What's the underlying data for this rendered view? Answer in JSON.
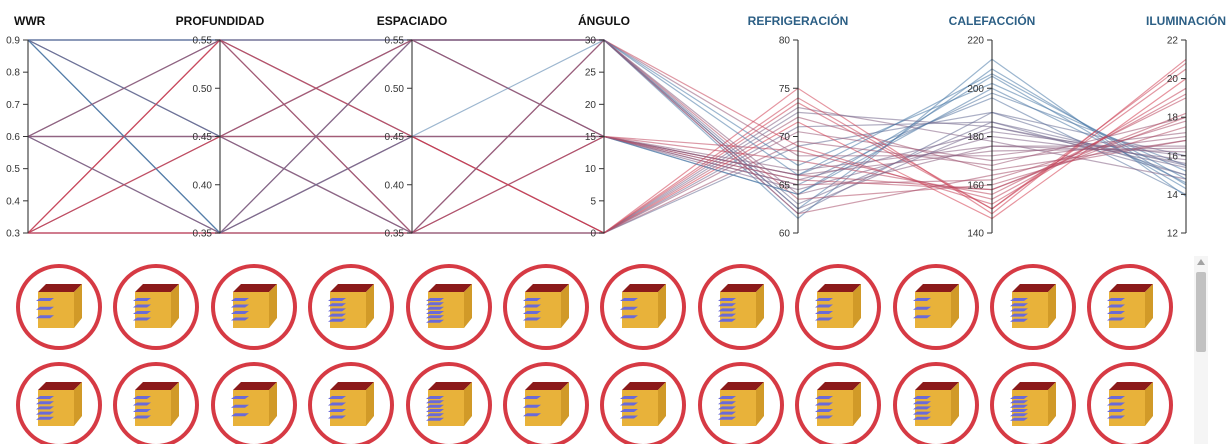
{
  "colors": {
    "high": "#4a7aa8",
    "low": "#d93a4c",
    "blue_title": "#2c5f85",
    "ring": "#d63a44",
    "box_top": "#8b1a1a",
    "box_face": "#e8b23a",
    "box_side": "#d19a28",
    "louver": "#6a6ad8"
  },
  "chart_data": {
    "type": "parallel-coordinates",
    "axes": [
      {
        "label": "WWR",
        "min": 0.3,
        "max": 0.9,
        "ticks": [
          "0.9",
          "0.8",
          "0.7",
          "0.6",
          "0.5",
          "0.4",
          "0.3"
        ],
        "tick_values": [
          0.9,
          0.8,
          0.7,
          0.6,
          0.5,
          0.4,
          0.3
        ],
        "title_color": "#111111",
        "tick_side": "left"
      },
      {
        "label": "PROFUNDIDAD",
        "min": 0.35,
        "max": 0.55,
        "ticks": [
          "0.55",
          "0.50",
          "0.45",
          "0.40",
          "0.35"
        ],
        "tick_values": [
          0.55,
          0.5,
          0.45,
          0.4,
          0.35
        ],
        "title_color": "#111111",
        "tick_side": "left"
      },
      {
        "label": "ESPACIADO",
        "min": 0.35,
        "max": 0.55,
        "ticks": [
          "0.55",
          "0.50",
          "0.45",
          "0.40",
          "0.35"
        ],
        "tick_values": [
          0.55,
          0.5,
          0.45,
          0.4,
          0.35
        ],
        "title_color": "#111111",
        "tick_side": "left"
      },
      {
        "label": "ÁNGULO",
        "min": 0,
        "max": 30,
        "ticks": [
          "30",
          "25",
          "20",
          "15",
          "10",
          "5",
          "0"
        ],
        "tick_values": [
          30,
          25,
          20,
          15,
          10,
          5,
          0
        ],
        "title_color": "#111111",
        "tick_side": "left"
      },
      {
        "label": "REFRIGERACIÓN",
        "min": 60,
        "max": 80,
        "ticks": [
          "80",
          "75",
          "70",
          "65",
          "60"
        ],
        "tick_values": [
          80,
          75,
          70,
          65,
          60
        ],
        "title_color": "#2c5f85",
        "tick_side": "left"
      },
      {
        "label": "CALEFACCIÓN",
        "min": 140,
        "max": 220,
        "ticks": [
          "220",
          "200",
          "180",
          "160",
          "140"
        ],
        "tick_values": [
          220,
          200,
          180,
          160,
          140
        ],
        "title_color": "#2c5f85",
        "tick_side": "left"
      },
      {
        "label": "ILUMINACIÓN",
        "min": 12,
        "max": 22,
        "ticks": [
          "22",
          "20",
          "18",
          "16",
          "14",
          "12"
        ],
        "tick_values": [
          22,
          20,
          18,
          16,
          14,
          12
        ],
        "title_color": "#2c5f85",
        "tick_side": "left"
      }
    ],
    "lines": [
      [
        0.9,
        0.55,
        0.55,
        30,
        62.5,
        208,
        14.5
      ],
      [
        0.9,
        0.45,
        0.35,
        15,
        65.0,
        198,
        15.5
      ],
      [
        0.9,
        0.35,
        0.45,
        0,
        71.0,
        186,
        15.0
      ],
      [
        0.9,
        0.55,
        0.45,
        15,
        66.0,
        196,
        14.0
      ],
      [
        0.9,
        0.45,
        0.55,
        30,
        61.5,
        212,
        13.9
      ],
      [
        0.9,
        0.35,
        0.35,
        30,
        67.0,
        202,
        15.2
      ],
      [
        0.9,
        0.55,
        0.35,
        0,
        73.0,
        178,
        14.8
      ],
      [
        0.9,
        0.45,
        0.45,
        0,
        69.0,
        190,
        16.0
      ],
      [
        0.9,
        0.35,
        0.55,
        15,
        64.0,
        205,
        14.3
      ],
      [
        0.6,
        0.55,
        0.55,
        30,
        63.0,
        186,
        15.5
      ],
      [
        0.6,
        0.45,
        0.35,
        15,
        66.5,
        176,
        16.5
      ],
      [
        0.6,
        0.35,
        0.45,
        0,
        70.5,
        170,
        17.0
      ],
      [
        0.6,
        0.55,
        0.45,
        15,
        65.5,
        182,
        16.0
      ],
      [
        0.6,
        0.45,
        0.55,
        30,
        62.0,
        190,
        15.0
      ],
      [
        0.6,
        0.35,
        0.35,
        30,
        68.0,
        172,
        17.2
      ],
      [
        0.6,
        0.55,
        0.35,
        0,
        72.0,
        166,
        16.8
      ],
      [
        0.6,
        0.45,
        0.45,
        0,
        69.5,
        168,
        18.0
      ],
      [
        0.6,
        0.35,
        0.55,
        15,
        64.5,
        180,
        15.8
      ],
      [
        0.3,
        0.55,
        0.55,
        30,
        63.5,
        160,
        17.5
      ],
      [
        0.3,
        0.45,
        0.35,
        15,
        67.5,
        156,
        19.0
      ],
      [
        0.3,
        0.35,
        0.45,
        0,
        74.0,
        150,
        20.5
      ],
      [
        0.3,
        0.55,
        0.45,
        15,
        66.0,
        158,
        18.2
      ],
      [
        0.3,
        0.45,
        0.55,
        30,
        62.0,
        164,
        16.8
      ],
      [
        0.3,
        0.35,
        0.35,
        30,
        69.0,
        152,
        19.5
      ],
      [
        0.3,
        0.55,
        0.35,
        0,
        75.0,
        148,
        21.0
      ],
      [
        0.3,
        0.45,
        0.45,
        0,
        71.5,
        146,
        20.0
      ],
      [
        0.3,
        0.35,
        0.55,
        15,
        65.0,
        162,
        17.8
      ],
      [
        0.9,
        0.55,
        0.55,
        15,
        64.0,
        200,
        14.6
      ],
      [
        0.6,
        0.45,
        0.45,
        15,
        66.0,
        174,
        16.4
      ],
      [
        0.3,
        0.35,
        0.35,
        15,
        68.5,
        154,
        19.2
      ],
      [
        0.9,
        0.45,
        0.35,
        0,
        72.5,
        184,
        15.4
      ],
      [
        0.3,
        0.55,
        0.45,
        0,
        73.5,
        150,
        20.8
      ],
      [
        0.6,
        0.35,
        0.55,
        30,
        62.5,
        184,
        15.6
      ],
      [
        0.3,
        0.45,
        0.55,
        15,
        65.5,
        158,
        18.0
      ],
      [
        0.9,
        0.35,
        0.45,
        30,
        66.0,
        206,
        14.8
      ],
      [
        0.6,
        0.55,
        0.35,
        30,
        64.0,
        176,
        16.2
      ]
    ]
  },
  "gallery": {
    "rows": 2,
    "cols": 12,
    "variants": [
      3,
      4,
      4,
      5,
      6,
      4,
      3,
      5,
      4,
      3,
      5,
      4,
      5,
      4,
      3,
      4,
      6,
      3,
      4,
      5,
      4,
      5,
      6,
      4
    ]
  }
}
